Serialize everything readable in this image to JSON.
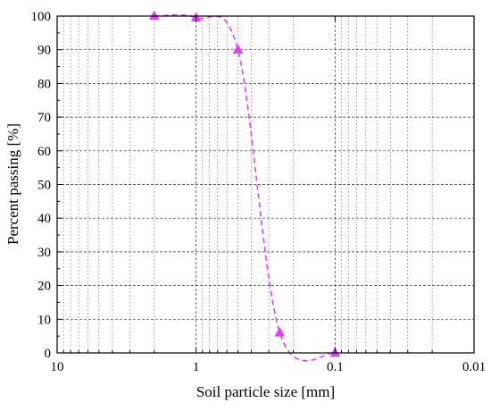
{
  "chart_data": {
    "type": "scatter",
    "x_scale": "log",
    "x_reversed": true,
    "xlabel": "Soil particle size [mm]",
    "ylabel": "Percent passing [%]",
    "xlim": [
      10,
      0.01
    ],
    "ylim": [
      0,
      100
    ],
    "grid": true,
    "x_tick_labels": [
      "10",
      "1",
      "0.1",
      "0.01"
    ],
    "y_tick_labels": [
      "0",
      "10",
      "20",
      "30",
      "40",
      "50",
      "60",
      "70",
      "80",
      "90",
      "100"
    ],
    "series": [
      {
        "color": "#e040fb",
        "marker": "triangle",
        "line_style": "dashed",
        "x": [
          2,
          1,
          0.5,
          0.25,
          0.1
        ],
        "y": [
          100,
          99.5,
          90,
          6,
          0
        ]
      }
    ]
  }
}
